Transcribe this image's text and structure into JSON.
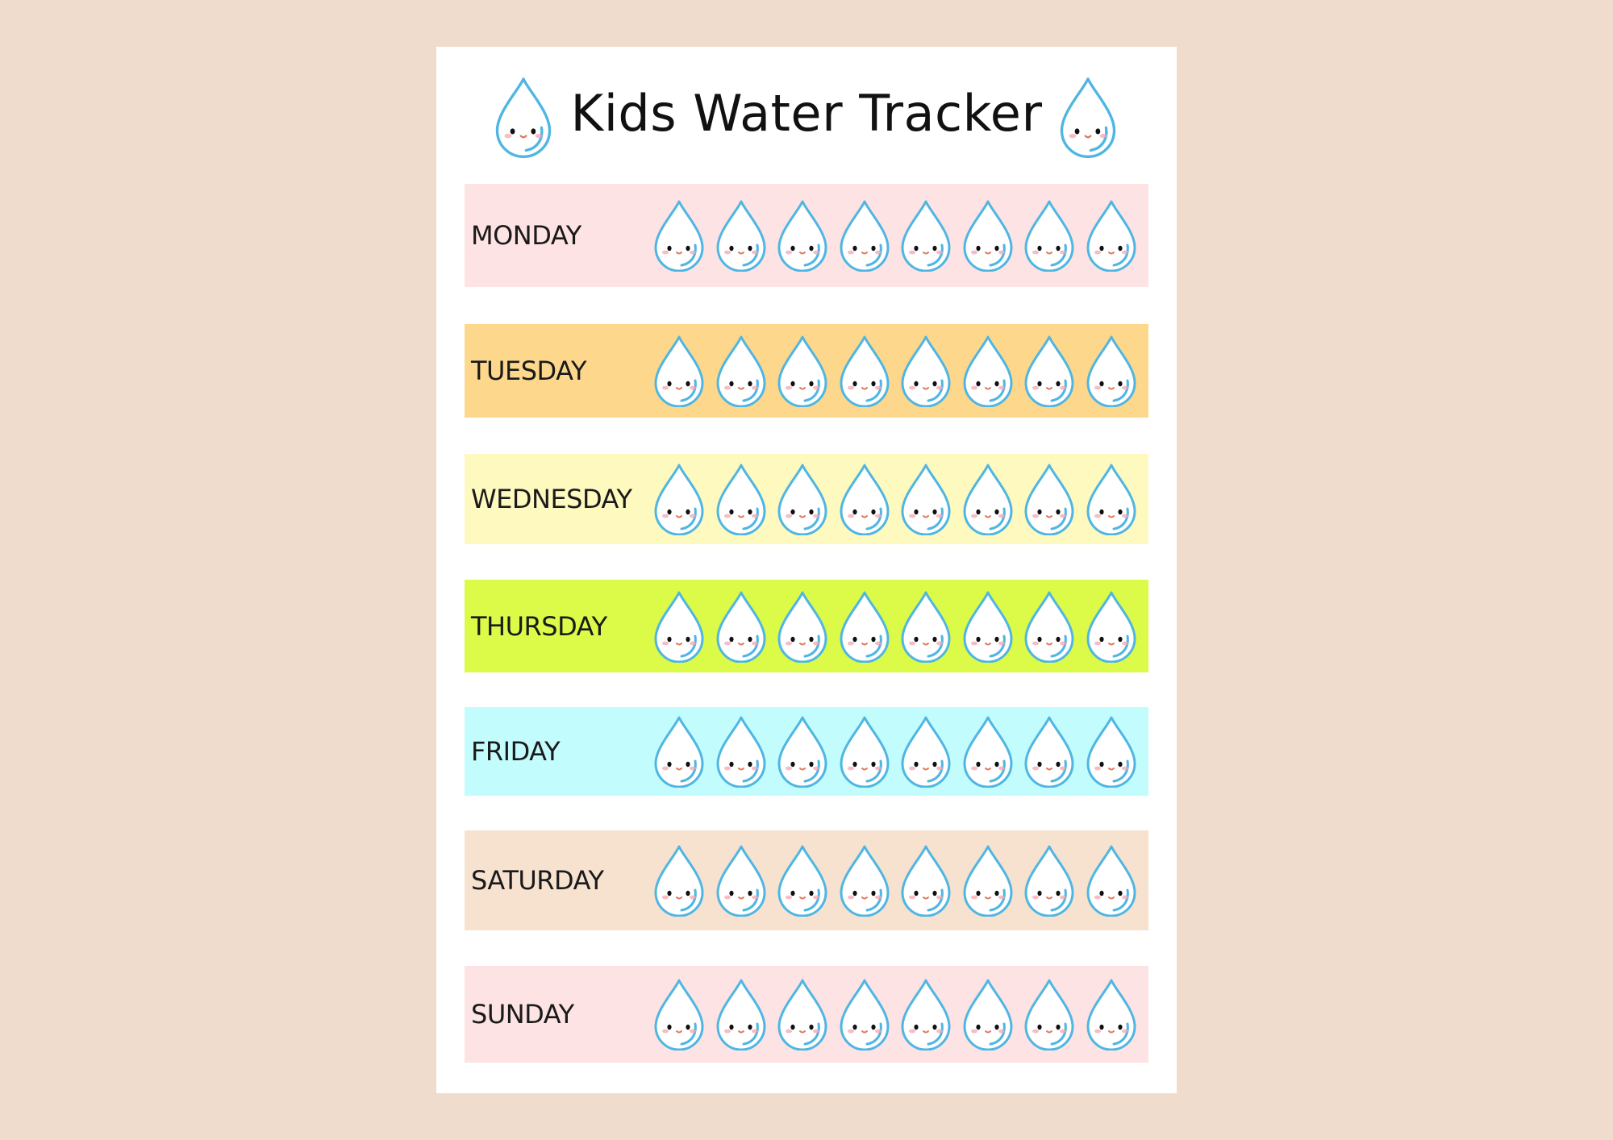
{
  "title": "Kids Water Tracker",
  "drops_per_day": 8,
  "colors": {
    "background": "#efdccd",
    "sheet": "#ffffff",
    "drop_outline": "#4fb6e3",
    "drop_fill": "#ffffff",
    "cheek": "#f4a6b0"
  },
  "days": [
    {
      "label": "MONDAY",
      "color": "#fde3e3"
    },
    {
      "label": "TUESDAY",
      "color": "#fdd88c"
    },
    {
      "label": "WEDNESDAY",
      "color": "#fdf9bf"
    },
    {
      "label": "THURSDAY",
      "color": "#dcfa48"
    },
    {
      "label": "FRIDAY",
      "color": "#c3fcfc"
    },
    {
      "label": "SATURDAY",
      "color": "#f7e2d0"
    },
    {
      "label": "SUNDAY",
      "color": "#fde3e3"
    }
  ],
  "icons": {
    "title_left": "water-drop-icon",
    "title_right": "water-drop-icon",
    "tracker": "water-drop-icon"
  }
}
